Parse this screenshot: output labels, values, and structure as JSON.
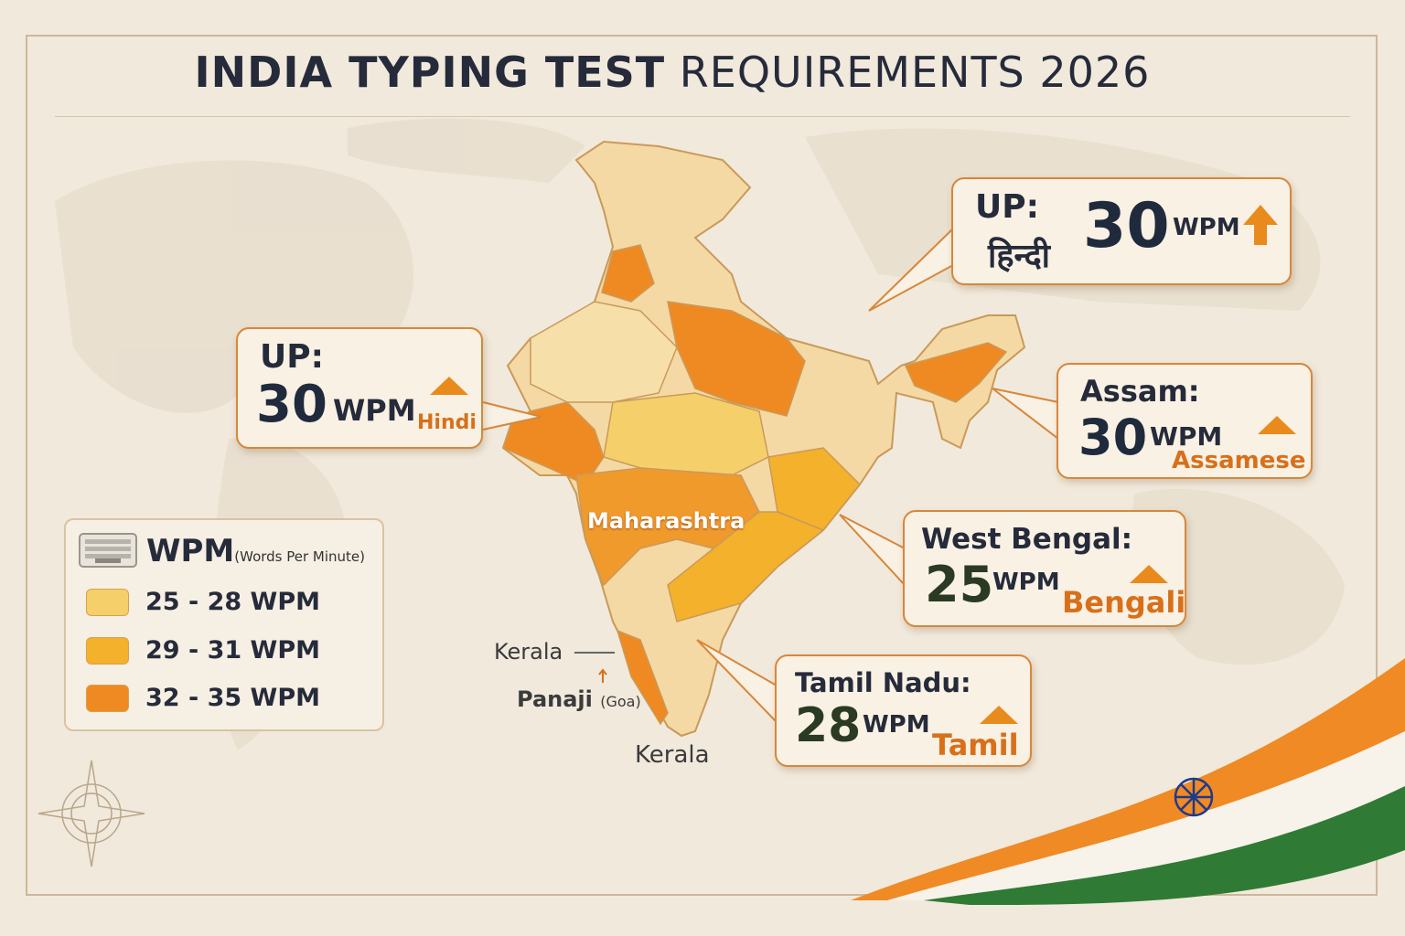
{
  "title": {
    "bold": "INDIA TYPING TEST",
    "rest": "REQUIREMENTS 2026"
  },
  "colors": {
    "range_25_28": "#f5cf6a",
    "range_29_31": "#f3b12c",
    "range_32_35": "#ef8a22",
    "accent": "#e98b1c",
    "text": "#262b3b",
    "frame": "#cdb79a"
  },
  "callouts": {
    "up_right": {
      "state": "UP:",
      "language": "हिन्दी",
      "value": "30",
      "unit": "WPM",
      "icon": "arrow-up-icon"
    },
    "up_left": {
      "state": "UP:",
      "value": "30",
      "unit": "WPM",
      "language": "Hindi",
      "icon": "triangle-up-icon"
    },
    "assam": {
      "state": "Assam:",
      "value": "30",
      "unit": "WPM",
      "language": "Assamese",
      "icon": "triangle-up-icon"
    },
    "west_bengal": {
      "state": "West Bengal:",
      "value": "25",
      "unit": "WPM",
      "language": "Bengali",
      "icon": "triangle-up-icon"
    },
    "tamil_nadu": {
      "state": "Tamil Nadu:",
      "value": "28",
      "unit": "WPM",
      "language": "Tamil",
      "icon": "triangle-up-icon"
    }
  },
  "legend": {
    "icon": "keyboard-icon",
    "title": "WPM",
    "subtitle": "(Words Per Minute)",
    "items": [
      {
        "label": "25 - 28 WPM",
        "color": "#f5cf6a"
      },
      {
        "label": "29 - 31 WPM",
        "color": "#f3b12c"
      },
      {
        "label": "32 - 35 WPM",
        "color": "#ef8a22"
      }
    ]
  },
  "map_labels": {
    "maharashtra": "Maharashtra",
    "kerala_west": "Kerala",
    "panaji": "Panaji",
    "goa": "(Goa)",
    "kerala_south": "Kerala"
  },
  "decorations": [
    "compass-rose-icon",
    "indian-flag-ribbon",
    "ashoka-chakra-icon"
  ]
}
